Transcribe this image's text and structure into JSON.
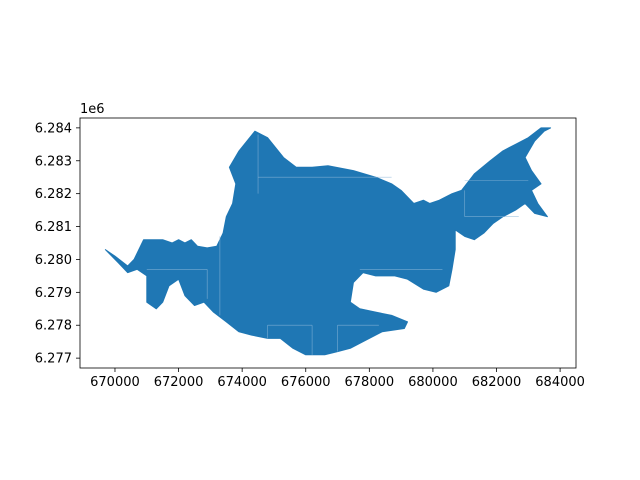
{
  "chart_data": {
    "type": "map",
    "title": "",
    "xlabel": "",
    "ylabel": "",
    "y_offset_label": "1e6",
    "xlim": [
      668900,
      684500
    ],
    "ylim": [
      6276700,
      6284300
    ],
    "grid": false,
    "x_ticks": [
      {
        "value": 670000,
        "label": "670000"
      },
      {
        "value": 672000,
        "label": "672000"
      },
      {
        "value": 674000,
        "label": "674000"
      },
      {
        "value": 676000,
        "label": "676000"
      },
      {
        "value": 678000,
        "label": "678000"
      },
      {
        "value": 680000,
        "label": "680000"
      },
      {
        "value": 682000,
        "label": "682000"
      },
      {
        "value": 684000,
        "label": "684000"
      }
    ],
    "y_ticks": [
      {
        "value": 6277000,
        "label": "6.277"
      },
      {
        "value": 6278000,
        "label": "6.278"
      },
      {
        "value": 6279000,
        "label": "6.279"
      },
      {
        "value": 6280000,
        "label": "6.280"
      },
      {
        "value": 6281000,
        "label": "6.281"
      },
      {
        "value": 6282000,
        "label": "6.282"
      },
      {
        "value": 6283000,
        "label": "6.283"
      },
      {
        "value": 6284000,
        "label": "6.284"
      }
    ],
    "fill_color": "#1f77b4",
    "edge_color": "#000000",
    "boundary": [
      [
        669700,
        6280300
      ],
      [
        670000,
        6280100
      ],
      [
        670400,
        6279800
      ],
      [
        670600,
        6280000
      ],
      [
        670900,
        6280600
      ],
      [
        671500,
        6280600
      ],
      [
        671800,
        6280500
      ],
      [
        672000,
        6280600
      ],
      [
        672200,
        6280500
      ],
      [
        672400,
        6280600
      ],
      [
        672600,
        6280400
      ],
      [
        672900,
        6280350
      ],
      [
        673200,
        6280400
      ],
      [
        673400,
        6280800
      ],
      [
        673500,
        6281300
      ],
      [
        673700,
        6281700
      ],
      [
        673800,
        6282300
      ],
      [
        673600,
        6282800
      ],
      [
        673900,
        6283300
      ],
      [
        674400,
        6283900
      ],
      [
        674800,
        6283700
      ],
      [
        675300,
        6283100
      ],
      [
        675700,
        6282800
      ],
      [
        676200,
        6282800
      ],
      [
        676700,
        6282850
      ],
      [
        677500,
        6282700
      ],
      [
        678200,
        6282500
      ],
      [
        678700,
        6282300
      ],
      [
        679000,
        6282100
      ],
      [
        679400,
        6281700
      ],
      [
        679700,
        6281800
      ],
      [
        679900,
        6281700
      ],
      [
        680200,
        6281800
      ],
      [
        680600,
        6282000
      ],
      [
        680900,
        6282100
      ],
      [
        681300,
        6282600
      ],
      [
        681800,
        6283000
      ],
      [
        682200,
        6283300
      ],
      [
        682600,
        6283500
      ],
      [
        683000,
        6283700
      ],
      [
        683400,
        6284000
      ],
      [
        683700,
        6284000
      ],
      [
        683500,
        6283900
      ],
      [
        683200,
        6283600
      ],
      [
        682900,
        6283100
      ],
      [
        683100,
        6282700
      ],
      [
        683400,
        6282300
      ],
      [
        683100,
        6282100
      ],
      [
        683300,
        6281700
      ],
      [
        683600,
        6281300
      ],
      [
        683200,
        6281400
      ],
      [
        682900,
        6281700
      ],
      [
        682600,
        6281500
      ],
      [
        682200,
        6281300
      ],
      [
        681900,
        6281100
      ],
      [
        681600,
        6280800
      ],
      [
        681300,
        6280600
      ],
      [
        681000,
        6280700
      ],
      [
        680700,
        6280900
      ],
      [
        680700,
        6280300
      ],
      [
        680600,
        6279700
      ],
      [
        680500,
        6279200
      ],
      [
        680100,
        6279000
      ],
      [
        679700,
        6279100
      ],
      [
        679200,
        6279400
      ],
      [
        678800,
        6279500
      ],
      [
        678200,
        6279500
      ],
      [
        677800,
        6279600
      ],
      [
        677500,
        6279300
      ],
      [
        677400,
        6278700
      ],
      [
        677700,
        6278500
      ],
      [
        678200,
        6278400
      ],
      [
        678700,
        6278300
      ],
      [
        679200,
        6278100
      ],
      [
        679100,
        6277900
      ],
      [
        678400,
        6277800
      ],
      [
        677800,
        6277500
      ],
      [
        677400,
        6277300
      ],
      [
        677000,
        6277200
      ],
      [
        676600,
        6277100
      ],
      [
        676000,
        6277100
      ],
      [
        675600,
        6277300
      ],
      [
        675200,
        6277600
      ],
      [
        674800,
        6277600
      ],
      [
        674300,
        6277700
      ],
      [
        673900,
        6277800
      ],
      [
        673500,
        6278100
      ],
      [
        673100,
        6278400
      ],
      [
        672800,
        6278700
      ],
      [
        672500,
        6278600
      ],
      [
        672200,
        6278900
      ],
      [
        672000,
        6279400
      ],
      [
        671700,
        6279200
      ],
      [
        671500,
        6278700
      ],
      [
        671300,
        6278500
      ],
      [
        671000,
        6278700
      ],
      [
        671000,
        6279500
      ],
      [
        670700,
        6279700
      ],
      [
        670400,
        6279600
      ],
      [
        670100,
        6279900
      ],
      [
        669700,
        6280300
      ]
    ],
    "parcel_lines": [
      [
        [
          672900,
          6279700
        ],
        [
          671000,
          6279700
        ]
      ],
      [
        [
          672900,
          6279700
        ],
        [
          672900,
          6278800
        ]
      ],
      [
        [
          673300,
          6280700
        ],
        [
          673300,
          6278300
        ]
      ],
      [
        [
          674500,
          6283800
        ],
        [
          674500,
          6282000
        ]
      ],
      [
        [
          674500,
          6282500
        ],
        [
          678700,
          6282500
        ]
      ],
      [
        [
          674800,
          6278000
        ],
        [
          674800,
          6277600
        ]
      ],
      [
        [
          674800,
          6278000
        ],
        [
          676200,
          6278000
        ]
      ],
      [
        [
          676200,
          6278000
        ],
        [
          676200,
          6277100
        ]
      ],
      [
        [
          677000,
          6278000
        ],
        [
          678300,
          6278000
        ]
      ],
      [
        [
          677000,
          6278000
        ],
        [
          677000,
          6277200
        ]
      ],
      [
        [
          677700,
          6279700
        ],
        [
          680300,
          6279700
        ]
      ],
      [
        [
          681000,
          6282100
        ],
        [
          681000,
          6281300
        ]
      ],
      [
        [
          681000,
          6281300
        ],
        [
          682700,
          6281300
        ]
      ],
      [
        [
          681000,
          6282400
        ],
        [
          683000,
          6282400
        ]
      ]
    ]
  }
}
